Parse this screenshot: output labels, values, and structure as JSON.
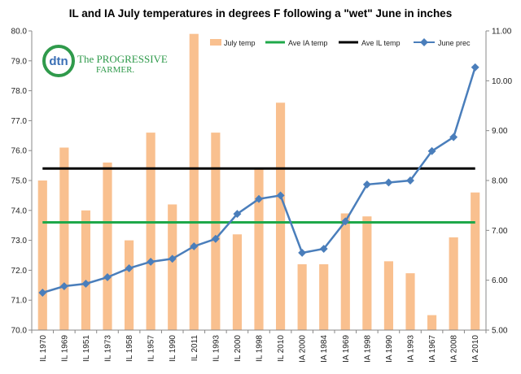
{
  "chart_data": {
    "type": "bar",
    "title": "IL and IA July temperatures in degrees F following a \"wet\" June in inches",
    "categories": [
      "IL 1970",
      "IL 1969",
      "IL 1951",
      "IL 1973",
      "IL 1958",
      "IL 1957",
      "IL 1990",
      "IL 2011",
      "IL 1993",
      "IL 2000",
      "IL 1998",
      "IL 2010",
      "IA 2000",
      "IA 1984",
      "IA 1969",
      "IA 1998",
      "IA 1990",
      "IA 1993",
      "IA 1967",
      "IA 2008",
      "IA 2010"
    ],
    "series": [
      {
        "name": "July temp",
        "kind": "bar",
        "axis": "left",
        "color": "#f9c08f",
        "values": [
          75.0,
          76.1,
          74.0,
          75.6,
          73.0,
          76.6,
          74.2,
          79.9,
          76.6,
          73.2,
          75.4,
          77.6,
          72.2,
          72.2,
          73.9,
          73.8,
          72.3,
          71.9,
          70.5,
          73.1,
          74.6
        ]
      },
      {
        "name": "Ave IA temp",
        "kind": "hline",
        "axis": "left",
        "color": "#1fa84a",
        "value": 73.6
      },
      {
        "name": "Ave IL temp",
        "kind": "hline",
        "axis": "left",
        "color": "#000000",
        "value": 75.4
      },
      {
        "name": "June prec",
        "kind": "line",
        "axis": "right",
        "color": "#4a7ebb",
        "values": [
          5.75,
          5.88,
          5.93,
          6.06,
          6.24,
          6.37,
          6.43,
          6.68,
          6.83,
          7.33,
          7.63,
          7.7,
          6.55,
          6.63,
          7.18,
          7.92,
          7.96,
          8.0,
          8.59,
          8.87,
          10.27
        ]
      }
    ],
    "yleft": {
      "min": 70.0,
      "max": 80.0,
      "step": 1.0,
      "tick_labels": [
        "70.0",
        "71.0",
        "72.0",
        "73.0",
        "74.0",
        "75.0",
        "76.0",
        "77.0",
        "78.0",
        "79.0",
        "80.0"
      ]
    },
    "yright": {
      "min": 5.0,
      "max": 11.0,
      "step": 1.0,
      "tick_labels": [
        "5.00",
        "6.00",
        "7.00",
        "8.00",
        "9.00",
        "10.00",
        "11.00"
      ]
    },
    "grid": false,
    "legend": {
      "position": "top",
      "items": [
        "July temp",
        "Ave IA temp",
        "Ave IL temp",
        "June prec"
      ]
    }
  },
  "logo": {
    "mark": "dtn",
    "name_line1": "The PROGRESSIVE",
    "name_line2": "FARMER."
  }
}
